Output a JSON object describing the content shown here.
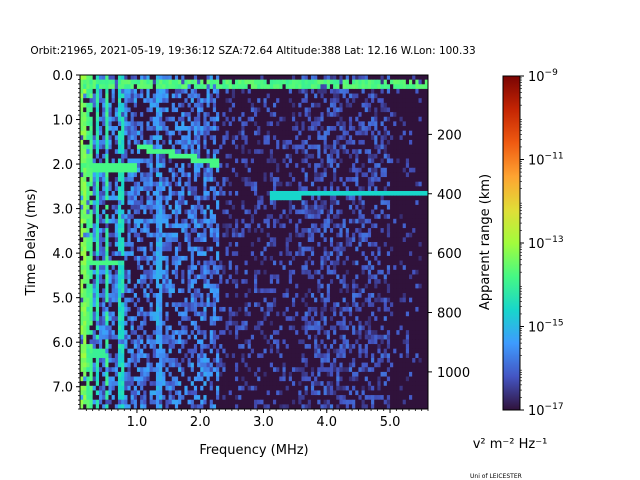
{
  "chart_data": {
    "type": "heatmap",
    "title": "Orbit:21965, 2021-05-19, 19:36:12 SZA:72.64 Altitude:388 Lat: 12.16 W.Lon: 100.33",
    "xlabel": "Frequency (MHz)",
    "ylabel": "Time Delay (ms)",
    "y2label": "Apparent range (km)",
    "xlim": [
      0.1,
      5.6
    ],
    "ylim": [
      7.5,
      0.0
    ],
    "y2_range_km": [
      0,
      1125
    ],
    "x_ticks": [
      1.0,
      2.0,
      3.0,
      4.0,
      5.0
    ],
    "x_tick_labels": [
      "1.0",
      "2.0",
      "3.0",
      "4.0",
      "5.0"
    ],
    "y_ticks": [
      0.0,
      1.0,
      2.0,
      3.0,
      4.0,
      5.0,
      6.0,
      7.0
    ],
    "y_tick_labels": [
      "0.0",
      "1.0",
      "2.0",
      "3.0",
      "4.0",
      "5.0",
      "6.0",
      "7.0"
    ],
    "y2_ticks": [
      200,
      400,
      600,
      800,
      1000
    ],
    "y2_tick_labels": [
      "200",
      "400",
      "600",
      "800",
      "1000"
    ],
    "colormap": "turbo",
    "colorbar": {
      "scale": "log",
      "range": [
        1e-17,
        1e-09
      ],
      "ticks": [
        1e-17,
        1e-15,
        1e-13,
        1e-11,
        1e-09
      ],
      "tick_exponents": [
        "−17",
        "−15",
        "−13",
        "−11",
        "−9"
      ],
      "tick_base": "10",
      "label": "v² m⁻² Hz⁻¹"
    },
    "features": [
      {
        "kind": "vertical_streak",
        "freq_mhz": 0.15,
        "level": -13.0
      },
      {
        "kind": "vertical_streak",
        "freq_mhz": 0.25,
        "level": -13.5
      },
      {
        "kind": "vertical_streak",
        "freq_mhz": 0.38,
        "level": -14.0
      },
      {
        "kind": "vertical_streak",
        "freq_mhz": 0.52,
        "level": -13.8
      },
      {
        "kind": "vertical_streak",
        "freq_mhz": 0.75,
        "level": -14.2
      },
      {
        "kind": "vertical_streak",
        "freq_mhz": 1.35,
        "level": -15.0
      },
      {
        "kind": "trace",
        "freq_range_mhz": [
          1.0,
          2.3
        ],
        "delay_ms_range": [
          1.6,
          2.0
        ],
        "level": -13.8
      },
      {
        "kind": "trace",
        "freq_range_mhz": [
          3.1,
          5.6
        ],
        "delay_ms_range": [
          2.7,
          2.65
        ],
        "level": -14.6
      },
      {
        "kind": "top_band",
        "delay_ms": 0.2,
        "freq_range_mhz": [
          0.1,
          5.6
        ],
        "level": -13.5
      },
      {
        "kind": "horizontal_band",
        "delay_ms": 2.1,
        "freq_range_mhz": [
          0.1,
          1.0
        ],
        "level": -13.8
      },
      {
        "kind": "horizontal_band",
        "delay_ms": 4.2,
        "freq_range_mhz": [
          0.1,
          0.7
        ],
        "level": -13.8
      },
      {
        "kind": "horizontal_band",
        "delay_ms": 6.25,
        "freq_range_mhz": [
          0.1,
          0.5
        ],
        "level": -14.0
      }
    ]
  },
  "credit": "Uni of LEICESTER"
}
